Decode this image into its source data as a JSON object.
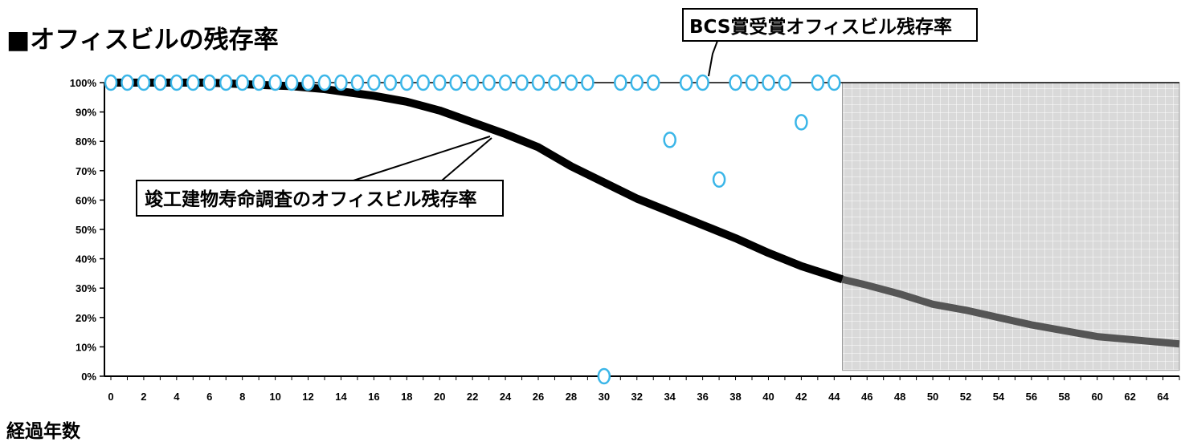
{
  "page": {
    "title": "■オフィスビルの残存率",
    "xlabel": "経過年数",
    "callout_bcs": "BCS賞受賞オフィスビル残存率",
    "callout_survey": "竣工建物寿命調査のオフィスビル残存率"
  },
  "chart_data": {
    "type": "line",
    "title": "■オフィスビルの残存率",
    "xlabel": "経過年数",
    "ylabel": "",
    "xlim": [
      0,
      65
    ],
    "ylim": [
      0,
      100
    ],
    "x_ticks": [
      0,
      2,
      4,
      6,
      8,
      10,
      12,
      14,
      16,
      18,
      20,
      22,
      24,
      26,
      28,
      30,
      32,
      34,
      36,
      38,
      40,
      42,
      44,
      46,
      48,
      50,
      52,
      54,
      56,
      58,
      60,
      62,
      64
    ],
    "y_ticks": [
      "0%",
      "10%",
      "20%",
      "30%",
      "40%",
      "50%",
      "60%",
      "70%",
      "80%",
      "90%",
      "100%"
    ],
    "grid_shaded_region": {
      "x_from": 44.5,
      "x_to": 65,
      "y_from": 2,
      "y_to": 100
    },
    "series": [
      {
        "name": "竣工建物寿命調査のオフィスビル残存率",
        "color": "#000000",
        "x": [
          0,
          2,
          4,
          6,
          8,
          10,
          11,
          12,
          13,
          14,
          16,
          18,
          20,
          22,
          24,
          26,
          28,
          30,
          32,
          34,
          36,
          38,
          40,
          42,
          44.5
        ],
        "y": [
          100,
          100,
          100,
          100,
          99.5,
          99,
          98.8,
          98.3,
          97.8,
          97,
          95.5,
          93.5,
          90.5,
          86.5,
          82.5,
          78,
          71.5,
          66,
          60.5,
          56,
          51.5,
          47,
          42,
          37.5,
          33
        ]
      },
      {
        "name": "竣工建物寿命調査のオフィスビル残存率",
        "color": "#555555",
        "x": [
          44.5,
          46,
          48,
          50,
          52,
          54,
          56,
          58,
          60,
          62,
          64,
          65
        ],
        "y": [
          33,
          31,
          28,
          24.5,
          22.5,
          20,
          17.5,
          15.5,
          13.5,
          12.5,
          11.5,
          11
        ]
      },
      {
        "name": "BCS賞受賞オフィスビル残存率",
        "color": "#3bb6e8",
        "line_x": [
          0,
          44
        ],
        "line_y": [
          100,
          100
        ],
        "points": [
          [
            0,
            100
          ],
          [
            1,
            100
          ],
          [
            2,
            100
          ],
          [
            3,
            100
          ],
          [
            4,
            100
          ],
          [
            5,
            100
          ],
          [
            6,
            100
          ],
          [
            7,
            100
          ],
          [
            8,
            100
          ],
          [
            9,
            100
          ],
          [
            10,
            100
          ],
          [
            11,
            100
          ],
          [
            12,
            100
          ],
          [
            13,
            100
          ],
          [
            14,
            100
          ],
          [
            15,
            100
          ],
          [
            16,
            100
          ],
          [
            17,
            100
          ],
          [
            18,
            100
          ],
          [
            19,
            100
          ],
          [
            20,
            100
          ],
          [
            21,
            100
          ],
          [
            22,
            100
          ],
          [
            23,
            100
          ],
          [
            24,
            100
          ],
          [
            25,
            100
          ],
          [
            26,
            100
          ],
          [
            27,
            100
          ],
          [
            28,
            100
          ],
          [
            29,
            100
          ],
          [
            30,
            0
          ],
          [
            31,
            100
          ],
          [
            32,
            100
          ],
          [
            33,
            100
          ],
          [
            34,
            80.5
          ],
          [
            35,
            100
          ],
          [
            36,
            100
          ],
          [
            37,
            67
          ],
          [
            38,
            100
          ],
          [
            39,
            100
          ],
          [
            40,
            100
          ],
          [
            41,
            100
          ],
          [
            42,
            86.5
          ],
          [
            43,
            100
          ],
          [
            44,
            100
          ]
        ]
      }
    ]
  }
}
